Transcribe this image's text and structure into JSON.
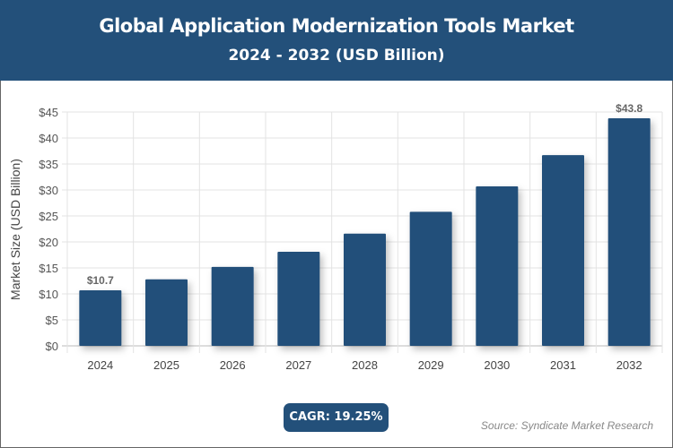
{
  "header": {
    "title": "Global Application Modernization Tools Market",
    "subtitle": "2024 - 2032 (USD Billion)"
  },
  "footer": {
    "cagr": "CAGR: 19.25%",
    "source": "Source: Syndicate Market Research"
  },
  "chart_data": {
    "type": "bar",
    "title": "Global Application Modernization Tools Market",
    "subtitle": "2024 - 2032 (USD Billion)",
    "ylabel": "Market Size (USD Billion)",
    "xlabel": "",
    "categories": [
      "2024",
      "2025",
      "2026",
      "2027",
      "2028",
      "2029",
      "2030",
      "2031",
      "2032"
    ],
    "values": [
      10.7,
      12.8,
      15.2,
      18.1,
      21.6,
      25.8,
      30.7,
      36.7,
      43.8
    ],
    "data_labels": {
      "0": "$10.7",
      "8": "$43.8"
    },
    "ylim": [
      0,
      45
    ],
    "yticks": [
      "$0",
      "$5",
      "$10",
      "$15",
      "$20",
      "$25",
      "$30",
      "$35",
      "$40",
      "$45"
    ],
    "grid": true,
    "bar_color": "#23507a"
  }
}
